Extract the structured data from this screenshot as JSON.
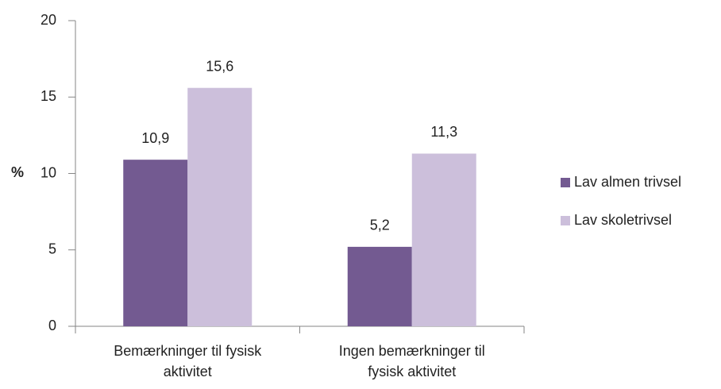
{
  "chart_data": {
    "type": "bar",
    "y_label": "%",
    "categories": [
      "Bemærkninger til fysisk aktivitet",
      "Ingen bemærkninger til fysisk aktivitet"
    ],
    "series": [
      {
        "name": "Lav almen trivsel",
        "color": "#735a91",
        "values": [
          10.9,
          5.2
        ],
        "value_labels": [
          "10,9",
          "5,2"
        ]
      },
      {
        "name": "Lav skoletrivsel",
        "color": "#ccbfdb",
        "values": [
          15.6,
          11.3
        ],
        "value_labels": [
          "15,6",
          "11,3"
        ]
      }
    ],
    "ylim": [
      0,
      20
    ],
    "yticks": [
      0,
      5,
      10,
      15,
      20
    ],
    "grid": false,
    "legend": "right"
  }
}
